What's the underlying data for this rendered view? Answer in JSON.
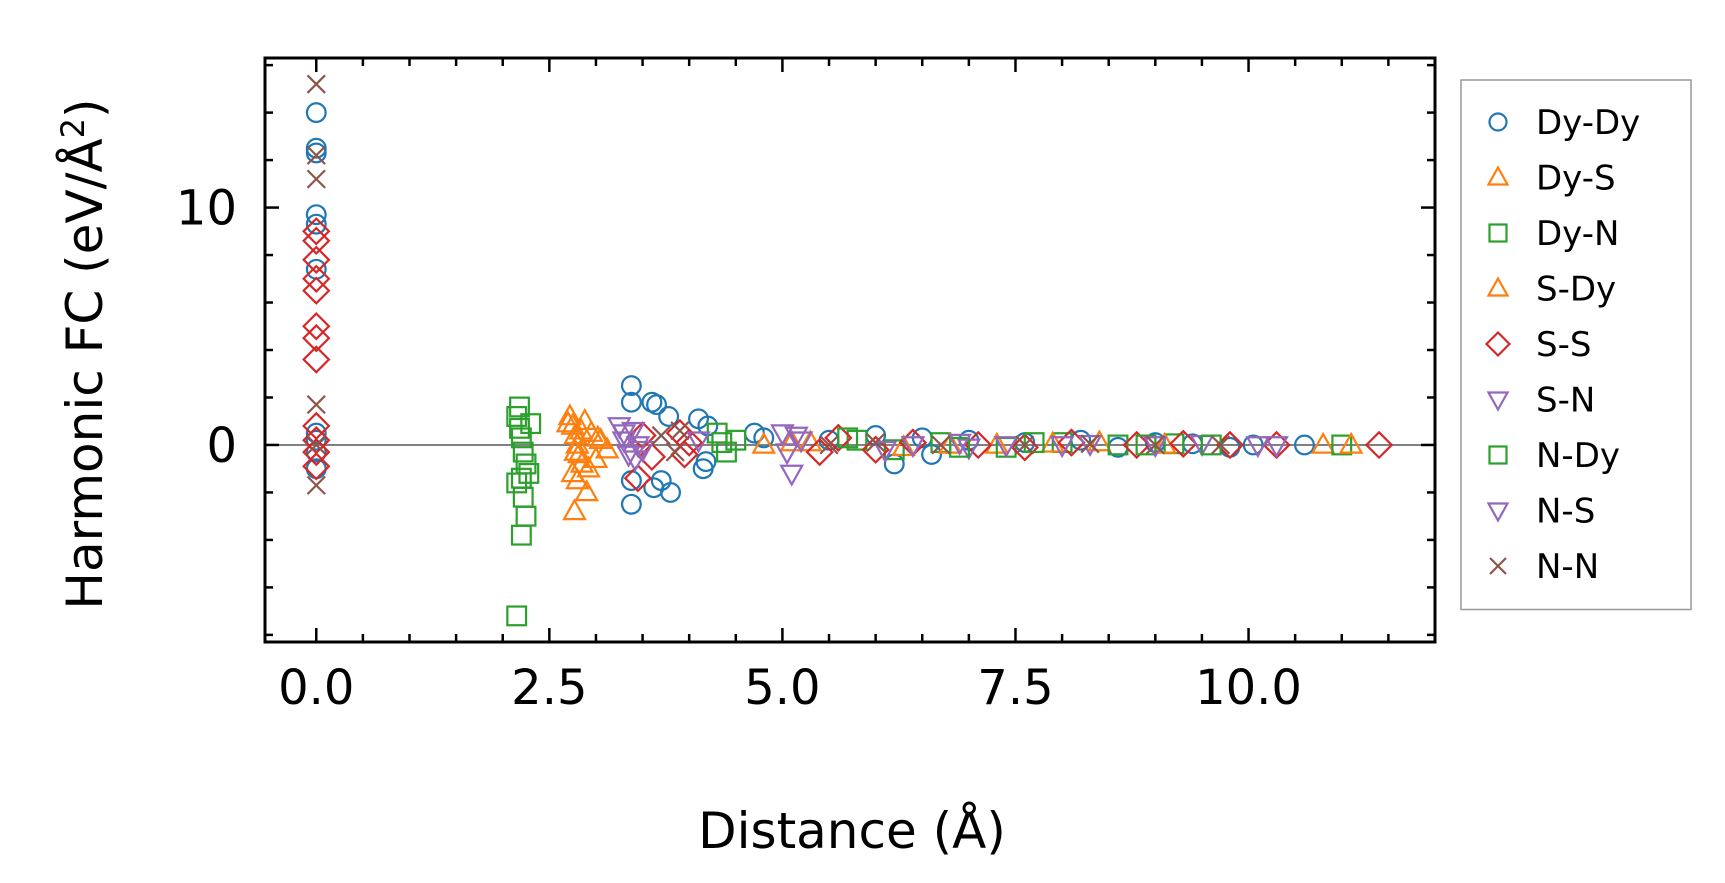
{
  "chart_data": {
    "type": "scatter",
    "title": "",
    "xlabel": "Distance (Å)",
    "ylabel_main": "Harmonic FC (eV/Å",
    "ylabel_sup": "2",
    "ylabel_end": ")",
    "xlim": [
      -0.55,
      12.0
    ],
    "ylim": [
      -8.3,
      16.3
    ],
    "xticks": [
      0.0,
      2.5,
      5.0,
      7.5,
      10.0
    ],
    "xtick_labels": [
      "0.0",
      "2.5",
      "5.0",
      "7.5",
      "10.0"
    ],
    "yticks": [
      0,
      10
    ],
    "ytick_labels": [
      "0",
      "10"
    ],
    "zero_line": true,
    "legend_position": "outside-right",
    "series": [
      {
        "name": "Dy-Dy",
        "color": "#1f77b4",
        "marker": "circle",
        "x": [
          0.0,
          0.0,
          0.0,
          0.0,
          0.0,
          0.0,
          0.0,
          0.0,
          0.0,
          0.0,
          3.38,
          3.38,
          3.38,
          3.38,
          3.6,
          3.65,
          3.7,
          3.62,
          3.78,
          3.8,
          4.1,
          4.15,
          4.2,
          4.18,
          4.7,
          4.8,
          5.5,
          6.0,
          6.2,
          6.5,
          6.6,
          7.0,
          7.6,
          8.2,
          8.6,
          9.0,
          9.4,
          9.8,
          10.05,
          10.6
        ],
        "y": [
          14.0,
          12.5,
          12.3,
          9.7,
          9.3,
          7.4,
          0.5,
          0.2,
          -0.3,
          -1.0,
          2.5,
          1.8,
          -1.5,
          -2.5,
          1.8,
          1.7,
          -1.5,
          -1.8,
          1.2,
          -2.0,
          1.1,
          -1.0,
          0.8,
          -0.7,
          0.5,
          0.3,
          0.2,
          0.4,
          -0.8,
          0.3,
          -0.4,
          0.2,
          0.1,
          0.2,
          -0.1,
          0.1,
          0.05,
          -0.1,
          0.0,
          0.0
        ]
      },
      {
        "name": "Dy-S",
        "color": "#ff7f0e",
        "marker": "triangle-up",
        "x": [
          2.72,
          2.75,
          2.78,
          2.8,
          2.82,
          2.85,
          2.75,
          2.8,
          2.9,
          2.95,
          3.0,
          2.77,
          2.88,
          3.05,
          4.8,
          5.1,
          6.3,
          7.3,
          8.4,
          10.8
        ],
        "y": [
          1.2,
          0.8,
          0.4,
          0.0,
          -0.4,
          -0.8,
          -1.2,
          -1.5,
          -2.0,
          0.5,
          -0.6,
          -2.8,
          1.0,
          0.2,
          0.0,
          0.1,
          -0.1,
          0.0,
          0.1,
          0.0
        ]
      },
      {
        "name": "Dy-N",
        "color": "#2ca02c",
        "marker": "square",
        "x": [
          2.15,
          2.18,
          2.2,
          2.22,
          2.25,
          2.2,
          2.15,
          2.18,
          2.22,
          2.25,
          2.2,
          2.15,
          4.3,
          4.4,
          4.5,
          5.8,
          6.2,
          6.7,
          7.4,
          8.0,
          8.6,
          9.2,
          11.0
        ],
        "y": [
          1.2,
          0.7,
          0.3,
          -0.3,
          -0.8,
          -1.4,
          -1.6,
          1.6,
          -2.2,
          -3.0,
          -3.8,
          -7.2,
          0.5,
          -0.3,
          0.2,
          0.2,
          -0.2,
          0.1,
          -0.1,
          0.1,
          0.0,
          0.05,
          0.0
        ]
      },
      {
        "name": "S-Dy",
        "color": "#ff7f0e",
        "marker": "triangle-up",
        "x": [
          2.7,
          2.78,
          2.84,
          2.92,
          3.02,
          3.12,
          5.3,
          6.8,
          7.9,
          9.1,
          11.1
        ],
        "y": [
          0.9,
          -0.3,
          0.6,
          -1.0,
          0.3,
          -0.2,
          0.1,
          0.0,
          0.05,
          0.0,
          0.0
        ]
      },
      {
        "name": "S-S",
        "color": "#d62728",
        "marker": "diamond",
        "x": [
          0.0,
          0.0,
          0.0,
          0.0,
          0.0,
          0.0,
          0.0,
          0.0,
          0.0,
          0.0,
          0.0,
          0.0,
          3.45,
          3.5,
          3.6,
          3.9,
          3.95,
          4.0,
          5.4,
          5.6,
          6.0,
          6.4,
          7.1,
          7.6,
          8.1,
          8.8,
          9.3,
          9.8,
          10.3,
          11.4
        ],
        "y": [
          9.0,
          8.6,
          7.8,
          7.0,
          6.5,
          5.0,
          4.5,
          3.6,
          0.8,
          0.2,
          -0.3,
          -0.9,
          -1.4,
          0.4,
          -0.5,
          0.5,
          -0.4,
          0.1,
          -0.3,
          0.3,
          -0.2,
          0.1,
          0.0,
          -0.1,
          0.1,
          0.0,
          0.05,
          0.0,
          0.0,
          0.0
        ]
      },
      {
        "name": "S-N",
        "color": "#9467bd",
        "marker": "triangle-down",
        "x": [
          3.25,
          3.3,
          3.35,
          3.4,
          3.5,
          3.45,
          5.0,
          5.05,
          5.1,
          5.2,
          6.4,
          7.0,
          8.0,
          9.5,
          10.3
        ],
        "y": [
          0.8,
          0.2,
          -0.4,
          0.6,
          -0.2,
          0.0,
          0.5,
          -0.3,
          -1.2,
          0.2,
          0.0,
          -0.1,
          0.0,
          0.05,
          0.0
        ]
      },
      {
        "name": "N-Dy",
        "color": "#2ca02c",
        "marker": "square",
        "x": [
          2.3,
          2.28,
          4.35,
          5.7,
          6.9,
          7.7,
          8.9,
          9.6
        ],
        "y": [
          0.9,
          -1.2,
          0.1,
          0.3,
          -0.1,
          0.1,
          0.0,
          0.0
        ]
      },
      {
        "name": "N-S",
        "color": "#9467bd",
        "marker": "triangle-down",
        "x": [
          3.3,
          3.42,
          4.1,
          5.15,
          6.1,
          6.9,
          7.4,
          8.3,
          9.0,
          10.1
        ],
        "y": [
          0.5,
          -0.6,
          0.2,
          0.4,
          -0.2,
          0.1,
          0.0,
          0.05,
          0.0,
          0.0
        ]
      },
      {
        "name": "N-N",
        "color": "#8c564b",
        "marker": "x",
        "x": [
          0.0,
          0.0,
          0.0,
          0.0,
          0.0,
          0.0,
          3.7,
          3.85,
          3.9,
          5.5,
          6.0,
          6.7,
          7.6,
          8.3,
          9.0,
          9.7
        ],
        "y": [
          15.2,
          12.2,
          11.2,
          1.7,
          0.0,
          -1.7,
          0.4,
          -0.3,
          0.6,
          0.0,
          0.1,
          0.0,
          0.0,
          0.05,
          0.0,
          0.0
        ]
      }
    ]
  }
}
